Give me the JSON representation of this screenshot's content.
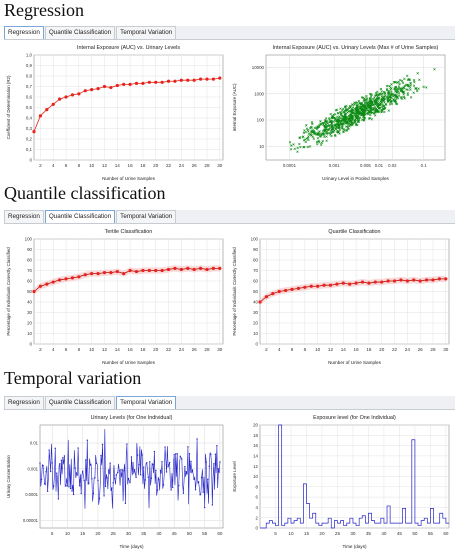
{
  "sections": [
    {
      "heading": "Regression",
      "active_tab": 0
    },
    {
      "heading": "Quantile classification",
      "active_tab": 1
    },
    {
      "heading": "Temporal variation",
      "active_tab": 2
    }
  ],
  "tabs": [
    "Regression",
    "Quantile Classification",
    "Temporal Variation"
  ],
  "colors": {
    "red": "#e8231b",
    "green": "#0a8a12",
    "blue": "#2323c8",
    "dark_red": "#b10f0f"
  },
  "charts": {
    "c1": {
      "title": "Internal Exposure (AUC) vs. Urinary Levels",
      "xlabel": "Number of Urine Samples",
      "ylabel": "Coefficient of Determination (R2)",
      "yticks": [
        "0",
        "0,1",
        "0,2",
        "0,3",
        "0,4",
        "0,5",
        "0,6",
        "0,7",
        "0,8",
        "0,9",
        "1,0"
      ],
      "xticks": [
        "2",
        "4",
        "6",
        "8",
        "10",
        "12",
        "14",
        "16",
        "18",
        "20",
        "22",
        "24",
        "26",
        "28",
        "30"
      ]
    },
    "c2": {
      "title": "Internal Exposure (AUC) vs. Urinary Levels (Max # of Urine Samples)",
      "xlabel": "Urinary Level in Pooled Samples",
      "ylabel": "Internal Exposure (AUC)",
      "yticks": [
        "10",
        "100",
        "1000",
        "10000"
      ],
      "xticks": [
        "0.0001",
        "0.001",
        "0.005",
        "0.01",
        "0.02",
        "0.1",
        "1"
      ]
    },
    "c3": {
      "title": "Tertile Classification",
      "xlabel": "Number of Urine Samples",
      "ylabel": "Percentage of Individuals Correctly Classified",
      "yticks": [
        "0",
        "10",
        "20",
        "30",
        "40",
        "50",
        "60",
        "70",
        "80",
        "90",
        "100"
      ],
      "xticks": [
        "2",
        "4",
        "6",
        "8",
        "10",
        "12",
        "14",
        "16",
        "18",
        "20",
        "22",
        "24",
        "26",
        "28",
        "30"
      ]
    },
    "c4": {
      "title": "Quartile Classification",
      "xlabel": "Number of Urine Samples",
      "ylabel": "Percentage of Individuals Correctly Classified",
      "yticks": [
        "0",
        "10",
        "20",
        "30",
        "40",
        "50",
        "60",
        "70",
        "80",
        "90",
        "100"
      ],
      "xticks": [
        "2",
        "4",
        "6",
        "8",
        "10",
        "12",
        "14",
        "16",
        "18",
        "20",
        "22",
        "24",
        "26",
        "28",
        "30"
      ]
    },
    "c5": {
      "title": "Urinary Levels (for One Individual)",
      "xlabel": "Time (days)",
      "ylabel": "Urinary Concentration",
      "yticks": [
        "0.00001",
        "0.0001",
        "0.001",
        "0.01"
      ],
      "xticks": [
        "5",
        "10",
        "15",
        "20",
        "25",
        "30",
        "35",
        "40",
        "45",
        "50",
        "55",
        "60"
      ]
    },
    "c6": {
      "title": "Exposure level (for One Individual)",
      "xlabel": "Time (days)",
      "ylabel": "Exposure Level",
      "yticks": [
        "0",
        "2",
        "4",
        "6",
        "8",
        "10",
        "12",
        "14",
        "16",
        "18",
        "20"
      ],
      "xticks": [
        "5",
        "10",
        "15",
        "20",
        "25",
        "30",
        "35",
        "40",
        "45",
        "50",
        "55",
        "60"
      ]
    }
  },
  "chart_data": [
    {
      "type": "scatter",
      "title": "Internal Exposure (AUC) vs. Urinary Levels",
      "xlabel": "Number of Urine Samples",
      "ylabel": "Coefficient of Determination (R2)",
      "ylim": [
        0,
        1
      ],
      "x": [
        1,
        2,
        3,
        4,
        5,
        6,
        7,
        8,
        9,
        10,
        11,
        12,
        13,
        14,
        15,
        16,
        17,
        18,
        19,
        20,
        21,
        22,
        23,
        24,
        25,
        26,
        27,
        28,
        29,
        30
      ],
      "values": [
        0.27,
        0.42,
        0.48,
        0.53,
        0.58,
        0.6,
        0.62,
        0.63,
        0.66,
        0.67,
        0.68,
        0.7,
        0.69,
        0.71,
        0.72,
        0.72,
        0.73,
        0.73,
        0.74,
        0.74,
        0.74,
        0.75,
        0.75,
        0.76,
        0.76,
        0.76,
        0.77,
        0.77,
        0.77,
        0.78
      ]
    },
    {
      "type": "scatter",
      "title": "Internal Exposure (AUC) vs. Urinary Levels (Max # of Urine Samples)",
      "xlabel": "Urinary Level in Pooled Samples",
      "ylabel": "Internal Exposure (AUC)",
      "xscale": "log",
      "yscale": "log"
    },
    {
      "type": "line",
      "title": "Tertile Classification",
      "xlabel": "Number of Urine Samples",
      "ylabel": "Percentage of Individuals Correctly Classified",
      "ylim": [
        0,
        100
      ],
      "x": [
        1,
        2,
        3,
        4,
        5,
        6,
        7,
        8,
        9,
        10,
        11,
        12,
        13,
        14,
        15,
        16,
        17,
        18,
        19,
        20,
        21,
        22,
        23,
        24,
        25,
        26,
        27,
        28,
        29,
        30
      ],
      "values": [
        50,
        55,
        57,
        59,
        61,
        62,
        63,
        64,
        66,
        67,
        67,
        68,
        68,
        69,
        67,
        70,
        69,
        70,
        70,
        70,
        70,
        71,
        72,
        71,
        72,
        71,
        72,
        71,
        72,
        72
      ]
    },
    {
      "type": "line",
      "title": "Quartile Classification",
      "xlabel": "Number of Urine Samples",
      "ylabel": "Percentage of Individuals Correctly Classified",
      "ylim": [
        0,
        100
      ],
      "x": [
        1,
        2,
        3,
        4,
        5,
        6,
        7,
        8,
        9,
        10,
        11,
        12,
        13,
        14,
        15,
        16,
        17,
        18,
        19,
        20,
        21,
        22,
        23,
        24,
        25,
        26,
        27,
        28,
        29,
        30
      ],
      "values": [
        40,
        45,
        48,
        50,
        51,
        52,
        53,
        54,
        55,
        55,
        56,
        56,
        57,
        58,
        57,
        58,
        59,
        58,
        59,
        59,
        60,
        60,
        61,
        60,
        61,
        60,
        61,
        61,
        62,
        62
      ]
    },
    {
      "type": "line",
      "title": "Urinary Levels (for One Individual)",
      "xlabel": "Time (days)",
      "ylabel": "Urinary Concentration",
      "xlim": [
        0,
        60
      ],
      "yscale": "log"
    },
    {
      "type": "line",
      "title": "Exposure level (for One Individual)",
      "xlabel": "Time (days)",
      "ylabel": "Exposure Level",
      "xlim": [
        0,
        60
      ],
      "ylim": [
        0,
        20
      ],
      "x": [
        0,
        2,
        3,
        4,
        5,
        6,
        7,
        8,
        9,
        10,
        11,
        12,
        13,
        14,
        15,
        16,
        17,
        18,
        19,
        20,
        21,
        22,
        23,
        24,
        25,
        26,
        27,
        28,
        29,
        30,
        31,
        32,
        33,
        34,
        35,
        36,
        37,
        38,
        39,
        40,
        41,
        42,
        43,
        44,
        45,
        46,
        47,
        48,
        49,
        50,
        51,
        52,
        53,
        54,
        55,
        56,
        57,
        58,
        59,
        60
      ],
      "values": [
        0,
        1,
        1.5,
        1,
        0.5,
        21,
        0.5,
        1,
        2,
        1,
        1.5,
        2,
        1,
        9,
        5,
        2,
        3,
        1,
        0.5,
        1,
        1,
        2,
        0,
        1.5,
        1,
        1.5,
        0.5,
        1,
        2,
        1,
        0.5,
        2,
        2.5,
        1,
        3,
        1.5,
        1,
        1,
        2,
        1,
        4.5,
        1,
        1,
        1,
        1,
        4,
        1,
        1,
        18,
        1,
        0.5,
        1.5,
        2,
        1,
        4,
        1,
        1,
        3,
        2,
        1
      ]
    }
  ]
}
